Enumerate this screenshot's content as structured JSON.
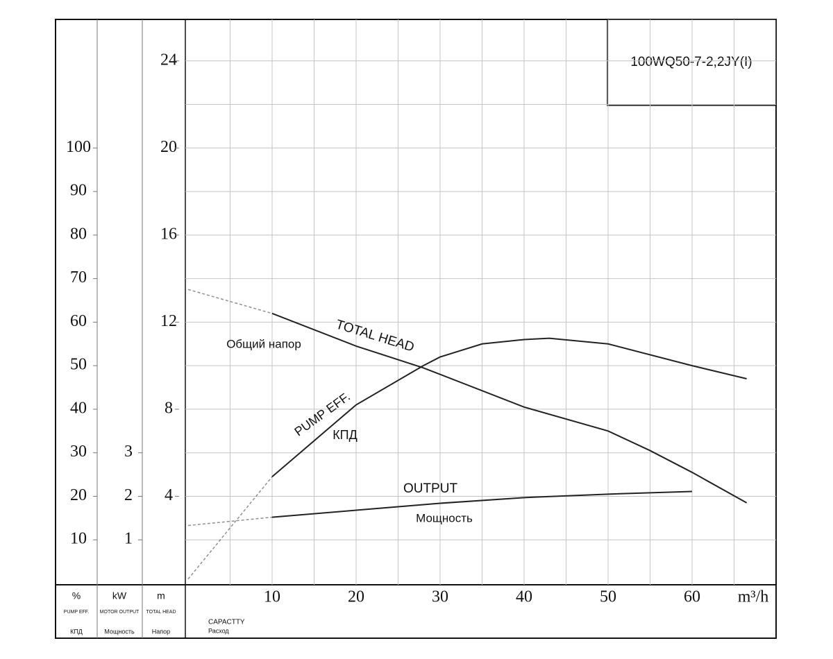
{
  "chart_data": {
    "type": "line",
    "title": "100WQ50-7-2,2JY(I)",
    "xlim": [
      0,
      70
    ],
    "xticks": [
      10,
      20,
      30,
      40,
      50,
      60
    ],
    "x_unit": "m³/h",
    "x_label": "CAPACTTY",
    "x_label_ru": "Расход",
    "ylim": [
      0,
      26
    ],
    "yticks": [
      4,
      8,
      12,
      16,
      20,
      24
    ],
    "y_unit": "m",
    "y_label": "TOTAL HEAD",
    "y_label_ru": "Напор",
    "y2lim": [
      0,
      130
    ],
    "y2ticks": [
      10,
      20,
      30,
      40,
      50,
      60,
      70,
      80,
      90,
      100
    ],
    "y2_unit": "%",
    "y2_label": "PUMP EFF.",
    "y2_label_ru": "КПД",
    "y3lim": [
      0,
      13
    ],
    "y3ticks": [
      1,
      2,
      3
    ],
    "y3_unit": "kW",
    "y3_label": "MOTOR OUTPUT",
    "y3_label_ru": "Мощность",
    "grid": true,
    "x_grid_step": 5,
    "y_grid_step": 2,
    "series": [
      {
        "name": "TOTAL HEAD",
        "name_ru": "Общий напор",
        "color": "#222222",
        "dash_until": 10,
        "x": [
          0,
          10,
          20,
          28,
          30,
          40,
          50,
          55,
          60,
          66.5
        ],
        "values": [
          13.5,
          12.4,
          10.9,
          9.9,
          9.6,
          8.1,
          7.0,
          6.1,
          5.1,
          3.7
        ]
      },
      {
        "name": "PUMP EFF.",
        "name_ru": "КПД",
        "color": "#222222",
        "dash_until": 10,
        "axis": "y2",
        "x": [
          0,
          10,
          20,
          28,
          30,
          35,
          40,
          43,
          50,
          60,
          66.5
        ],
        "values": [
          1,
          24.5,
          41,
          50,
          52,
          55,
          56,
          56.3,
          55,
          50,
          47
        ]
      },
      {
        "name": "OUTPUT",
        "name_ru": "Мощность",
        "color": "#222222",
        "dash_until": 10,
        "axis": "y3",
        "x": [
          0,
          10,
          20,
          30,
          40,
          50,
          60
        ],
        "values": [
          1.33,
          1.52,
          1.68,
          1.84,
          1.97,
          2.05,
          2.11
        ]
      }
    ]
  }
}
